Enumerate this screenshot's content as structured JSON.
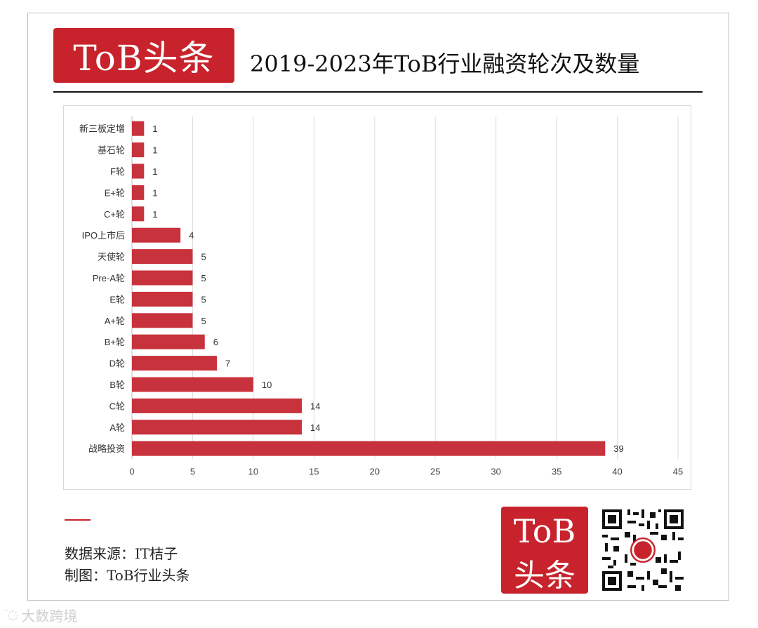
{
  "header": {
    "logo_text": "ToB头条",
    "title": "2019-2023年ToB行业融资轮次及数量"
  },
  "chart_data": {
    "type": "bar",
    "orientation": "horizontal",
    "categories": [
      "新三板定增",
      "基石轮",
      "F轮",
      "E+轮",
      "C+轮",
      "IPO上市后",
      "天使轮",
      "Pre-A轮",
      "E轮",
      "A+轮",
      "B+轮",
      "D轮",
      "B轮",
      "C轮",
      "A轮",
      "战略投资"
    ],
    "values": [
      1,
      1,
      1,
      1,
      1,
      4,
      5,
      5,
      5,
      5,
      6,
      7,
      10,
      14,
      14,
      39
    ],
    "xlim": [
      0,
      45
    ],
    "xticks": [
      "0",
      "5",
      "10",
      "15",
      "20",
      "25",
      "30",
      "35",
      "40",
      "45"
    ],
    "grid": true,
    "bar_color": "#c8323d"
  },
  "footer": {
    "source": "数据来源：IT桔子",
    "maker": "制图：ToB行业头条",
    "logo_line1": "ToB",
    "logo_line2": "头条",
    "qr_icon": "qr-code-icon"
  },
  "watermark": {
    "text": "大数跨境",
    "icon": "speech-bubble-icon"
  }
}
